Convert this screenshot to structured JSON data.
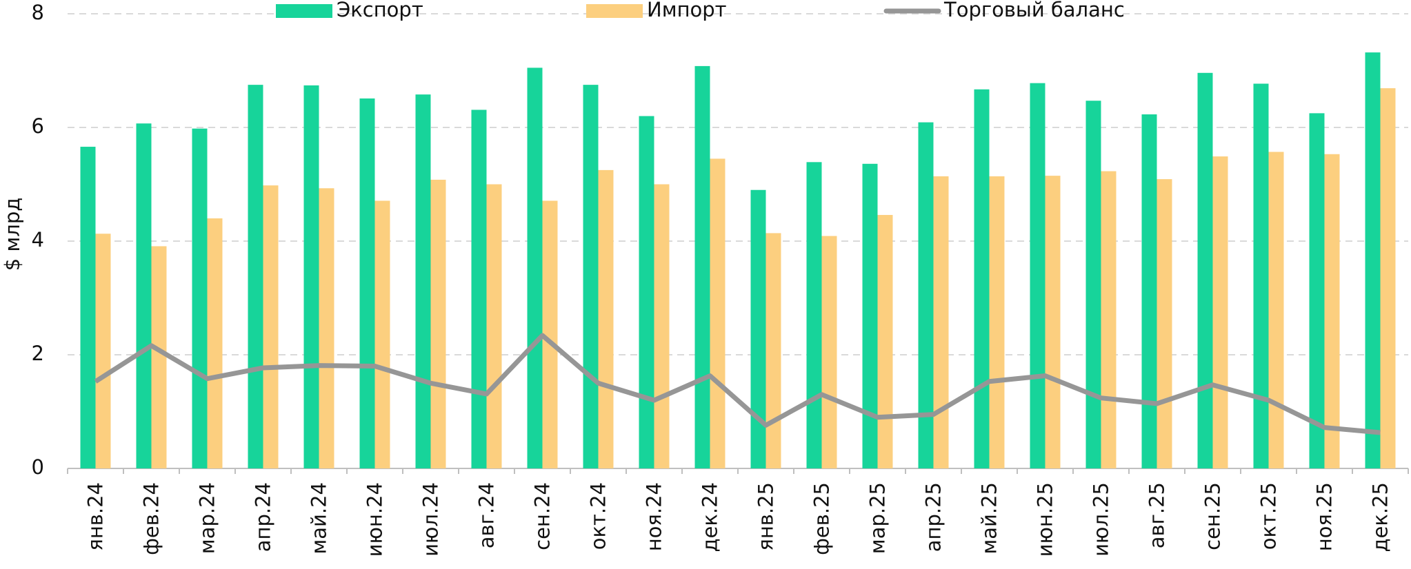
{
  "chart_data": {
    "type": "bar_line",
    "y_label": "$ млрд",
    "categories": [
      "янв.24",
      "фев.24",
      "мар.24",
      "апр.24",
      "май.24",
      "июн.24",
      "июл.24",
      "авг.24",
      "сен.24",
      "окт.24",
      "ноя.24",
      "дек.24",
      "янв.25",
      "фев.25",
      "мар.25",
      "апр.25",
      "май.25",
      "июн.25",
      "июл.25",
      "авг.25",
      "сен.25",
      "окт.25",
      "ноя.25",
      "дек.25"
    ],
    "series": [
      {
        "name": "Экспорт",
        "type": "bar",
        "color": "#17d49a",
        "values": [
          5.66,
          6.07,
          5.98,
          6.75,
          6.74,
          6.51,
          6.58,
          6.31,
          7.05,
          6.75,
          6.2,
          7.08,
          4.9,
          5.39,
          5.36,
          6.09,
          6.67,
          6.78,
          6.47,
          6.23,
          6.96,
          6.77,
          6.25,
          7.32
        ]
      },
      {
        "name": "Импорт",
        "type": "bar",
        "color": "#fccf7f",
        "values": [
          4.13,
          3.91,
          4.4,
          4.98,
          4.93,
          4.71,
          5.08,
          5.0,
          4.71,
          5.25,
          5.0,
          5.45,
          4.14,
          4.09,
          4.46,
          5.14,
          5.14,
          5.15,
          5.23,
          5.09,
          5.49,
          5.57,
          5.53,
          6.69
        ]
      },
      {
        "name": "Торговый баланс",
        "type": "line",
        "color": "#969696",
        "values": [
          1.53,
          2.16,
          1.58,
          1.77,
          1.81,
          1.8,
          1.5,
          1.31,
          2.34,
          1.5,
          1.2,
          1.63,
          0.76,
          1.3,
          0.9,
          0.95,
          1.53,
          1.63,
          1.24,
          1.14,
          1.47,
          1.2,
          0.72,
          0.63
        ]
      }
    ],
    "ylim": [
      0,
      8
    ],
    "yticks": [
      0,
      2,
      4,
      6,
      8
    ],
    "grid": true,
    "legend": "top"
  }
}
